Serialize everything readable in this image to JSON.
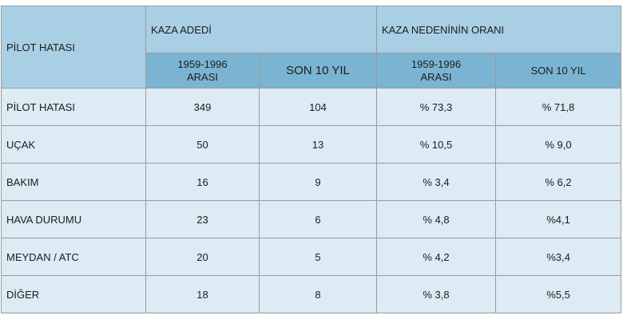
{
  "header": {
    "category_col": "PİLOT HATASI",
    "group_count": "KAZA ADEDİ",
    "group_ratio": "KAZA NEDENİNİN ORANI",
    "sub_period_line1": "1959-1996",
    "sub_period_line2": "ARASI",
    "sub_recent_count": "SON 10 YIL",
    "sub_recent_ratio": "SON 10 YIL"
  },
  "rows": [
    {
      "label": "PİLOT HATASI",
      "count_1959": "349",
      "count_recent": "104",
      "ratio_1959": "% 73,3",
      "ratio_recent": "% 71,8"
    },
    {
      "label": "UÇAK",
      "count_1959": "50",
      "count_recent": "13",
      "ratio_1959": "% 10,5",
      "ratio_recent": "% 9,0"
    },
    {
      "label": "BAKIM",
      "count_1959": "16",
      "count_recent": "9",
      "ratio_1959": "% 3,4",
      "ratio_recent": "% 6,2"
    },
    {
      "label": "HAVA DURUMU",
      "count_1959": "23",
      "count_recent": "6",
      "ratio_1959": "% 4,8",
      "ratio_recent": "%4,1"
    },
    {
      "label": "MEYDAN / ATC",
      "count_1959": "20",
      "count_recent": "5",
      "ratio_1959": "% 4,2",
      "ratio_recent": "%3,4"
    },
    {
      "label": "DİĞER",
      "count_1959": "18",
      "count_recent": "8",
      "ratio_1959": "% 3,8",
      "ratio_recent": "%5,5"
    }
  ]
}
